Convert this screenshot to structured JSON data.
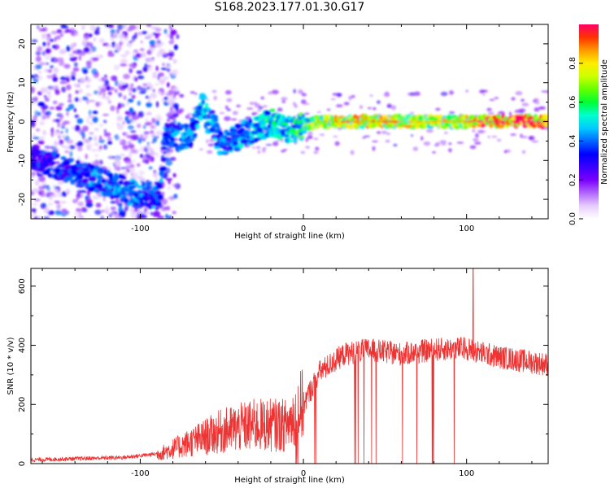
{
  "title": "S168.2023.177.01.30.G17",
  "chart_data": [
    {
      "type": "heatmap",
      "xlabel": "Height of straight line (km)",
      "ylabel": "Frequency (Hz)",
      "xlim": [
        -167,
        150
      ],
      "ylim": [
        -25,
        25
      ],
      "x_ticks": [
        -100,
        0,
        100
      ],
      "y_ticks": [
        20,
        10,
        0,
        -10,
        -20
      ],
      "colorbar": {
        "label": "Normalized spectral amplitude",
        "range": [
          0,
          1
        ],
        "ticks": [
          "0.0",
          "0.2",
          "0.4",
          "0.6",
          "0.8"
        ],
        "colormap": [
          "#ffffff",
          "#e6ccff",
          "#b266ff",
          "#7a00ff",
          "#3a00ff",
          "#0000ff",
          "#0066ff",
          "#00ccff",
          "#00ffcc",
          "#00ff33",
          "#66ff00",
          "#ccff00",
          "#ffee00",
          "#ff9900",
          "#ff3300",
          "#ff0066"
        ]
      },
      "ridge": [
        {
          "x": -167,
          "f": -9,
          "a": 0.35
        },
        {
          "x": -100,
          "f": -19,
          "a": 0.45
        },
        {
          "x": -88,
          "f": -19,
          "a": 0.4
        },
        {
          "x": -85,
          "f": -4,
          "a": 0.4
        },
        {
          "x": -70,
          "f": -4,
          "a": 0.45
        },
        {
          "x": -62,
          "f": 4,
          "a": 0.5
        },
        {
          "x": -50,
          "f": -6,
          "a": 0.45
        },
        {
          "x": -40,
          "f": -4,
          "a": 0.45
        },
        {
          "x": -20,
          "f": 0,
          "a": 0.55
        },
        {
          "x": -10,
          "f": -2,
          "a": 0.55
        },
        {
          "x": 0,
          "f": -1,
          "a": 0.6
        },
        {
          "x": 10,
          "f": 0,
          "a": 0.75
        },
        {
          "x": 30,
          "f": 0,
          "a": 0.85
        },
        {
          "x": 60,
          "f": 0,
          "a": 0.8
        },
        {
          "x": 80,
          "f": 0,
          "a": 0.75
        },
        {
          "x": 100,
          "f": 0,
          "a": 0.8
        },
        {
          "x": 105,
          "f": 0,
          "a": 0.95
        },
        {
          "x": 150,
          "f": 0,
          "a": 0.95
        }
      ]
    },
    {
      "type": "line",
      "xlabel": "Height of straight line (km)",
      "ylabel": "SNR (10 * v/v)",
      "xlim": [
        -167,
        150
      ],
      "ylim": [
        0,
        660
      ],
      "x_ticks": [
        -100,
        0,
        100
      ],
      "y_ticks": [
        0,
        200,
        400,
        600
      ],
      "series_color": "#ee3333",
      "envelope": [
        {
          "x": -167,
          "y": 10
        },
        {
          "x": -110,
          "y": 18
        },
        {
          "x": -90,
          "y": 30
        },
        {
          "x": -70,
          "y": 70
        },
        {
          "x": -50,
          "y": 110
        },
        {
          "x": -30,
          "y": 130
        },
        {
          "x": -10,
          "y": 130
        },
        {
          "x": 0,
          "y": 200
        },
        {
          "x": 10,
          "y": 310
        },
        {
          "x": 25,
          "y": 370
        },
        {
          "x": 40,
          "y": 385
        },
        {
          "x": 60,
          "y": 370
        },
        {
          "x": 80,
          "y": 385
        },
        {
          "x": 100,
          "y": 390
        },
        {
          "x": 105,
          "y": 380
        },
        {
          "x": 120,
          "y": 360
        },
        {
          "x": 150,
          "y": 335
        }
      ],
      "dropouts_x_range": [
        -5,
        102
      ],
      "spike": {
        "x": 104,
        "y": 660
      }
    }
  ]
}
